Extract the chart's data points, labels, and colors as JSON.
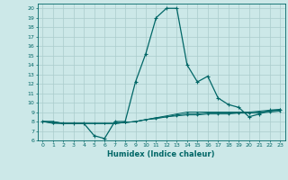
{
  "xlabel": "Humidex (Indice chaleur)",
  "ylabel": "",
  "background_color": "#cce8e8",
  "line_color": "#006666",
  "grid_color": "#aacccc",
  "xlim": [
    -0.5,
    23.5
  ],
  "ylim": [
    6,
    20.5
  ],
  "yticks": [
    6,
    7,
    8,
    9,
    10,
    11,
    12,
    13,
    14,
    15,
    16,
    17,
    18,
    19,
    20
  ],
  "xticks": [
    0,
    1,
    2,
    3,
    4,
    5,
    6,
    7,
    8,
    9,
    10,
    11,
    12,
    13,
    14,
    15,
    16,
    17,
    18,
    19,
    20,
    21,
    22,
    23
  ],
  "series": [
    {
      "x": [
        0,
        1,
        2,
        3,
        4,
        5,
        6,
        7,
        8,
        9,
        10,
        11,
        12,
        13,
        14,
        15,
        16,
        17,
        18,
        19,
        20,
        21,
        22,
        23
      ],
      "y": [
        8.0,
        7.9,
        7.8,
        7.8,
        7.8,
        6.5,
        6.2,
        8.0,
        8.0,
        12.2,
        15.2,
        19.0,
        20.0,
        20.0,
        14.0,
        12.2,
        12.8,
        10.5,
        9.8,
        9.5,
        8.5,
        8.8,
        9.2,
        9.2
      ]
    },
    {
      "x": [
        0,
        1,
        2,
        3,
        4,
        5,
        6,
        7,
        8,
        9,
        10,
        11,
        12,
        13,
        14,
        15,
        16,
        17,
        18,
        19,
        20,
        21,
        22,
        23
      ],
      "y": [
        8.0,
        8.0,
        7.8,
        7.8,
        7.8,
        7.8,
        7.8,
        7.8,
        7.9,
        8.0,
        8.2,
        8.4,
        8.6,
        8.8,
        9.0,
        9.0,
        9.0,
        9.0,
        9.0,
        9.0,
        9.0,
        9.1,
        9.2,
        9.3
      ]
    },
    {
      "x": [
        0,
        1,
        2,
        3,
        4,
        5,
        6,
        7,
        8,
        9,
        10,
        11,
        12,
        13,
        14,
        15,
        16,
        17,
        18,
        19,
        20,
        21,
        22,
        23
      ],
      "y": [
        8.0,
        8.0,
        7.8,
        7.8,
        7.8,
        7.8,
        7.8,
        7.8,
        7.9,
        8.0,
        8.2,
        8.4,
        8.5,
        8.7,
        8.8,
        8.8,
        8.9,
        8.9,
        8.9,
        8.9,
        8.9,
        9.0,
        9.1,
        9.2
      ]
    },
    {
      "x": [
        0,
        1,
        2,
        3,
        4,
        5,
        6,
        7,
        8,
        9,
        10,
        11,
        12,
        13,
        14,
        15,
        16,
        17,
        18,
        19,
        20,
        21,
        22,
        23
      ],
      "y": [
        8.0,
        7.8,
        7.8,
        7.8,
        7.8,
        7.8,
        7.8,
        7.8,
        7.9,
        8.0,
        8.2,
        8.3,
        8.5,
        8.6,
        8.7,
        8.7,
        8.8,
        8.8,
        8.8,
        8.9,
        8.9,
        8.9,
        9.0,
        9.1
      ]
    }
  ]
}
